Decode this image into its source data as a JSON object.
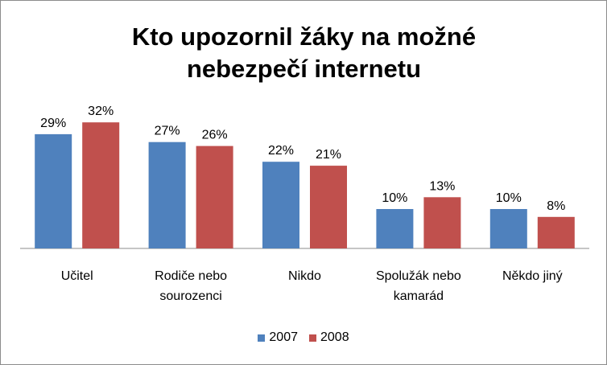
{
  "chart_data": {
    "type": "bar",
    "title": "Kto upozornil žáky na možné nebezpečí internetu",
    "categories": [
      "Učitel",
      "Rodiče nebo sourozenci",
      "Nikdo",
      "Spolužák nebo kamarád",
      "Někdo jiný"
    ],
    "category_lines": [
      [
        "Učitel"
      ],
      [
        "Rodiče nebo",
        "sourozenci"
      ],
      [
        "Nikdo"
      ],
      [
        "Spolužák nebo",
        "kamarád"
      ],
      [
        "Někdo jiný"
      ]
    ],
    "series": [
      {
        "name": "2007",
        "values": [
          29,
          27,
          22,
          10,
          10
        ],
        "labels": [
          "29%",
          "27%",
          "22%",
          "10%",
          "10%"
        ],
        "color": "#4f81bd"
      },
      {
        "name": "2008",
        "values": [
          32,
          26,
          21,
          13,
          8
        ],
        "labels": [
          "32%",
          "26%",
          "21%",
          "13%",
          "8%"
        ],
        "color": "#c0504d"
      }
    ],
    "ylim": [
      0,
      35
    ],
    "grid": false,
    "legend_position": "bottom"
  }
}
